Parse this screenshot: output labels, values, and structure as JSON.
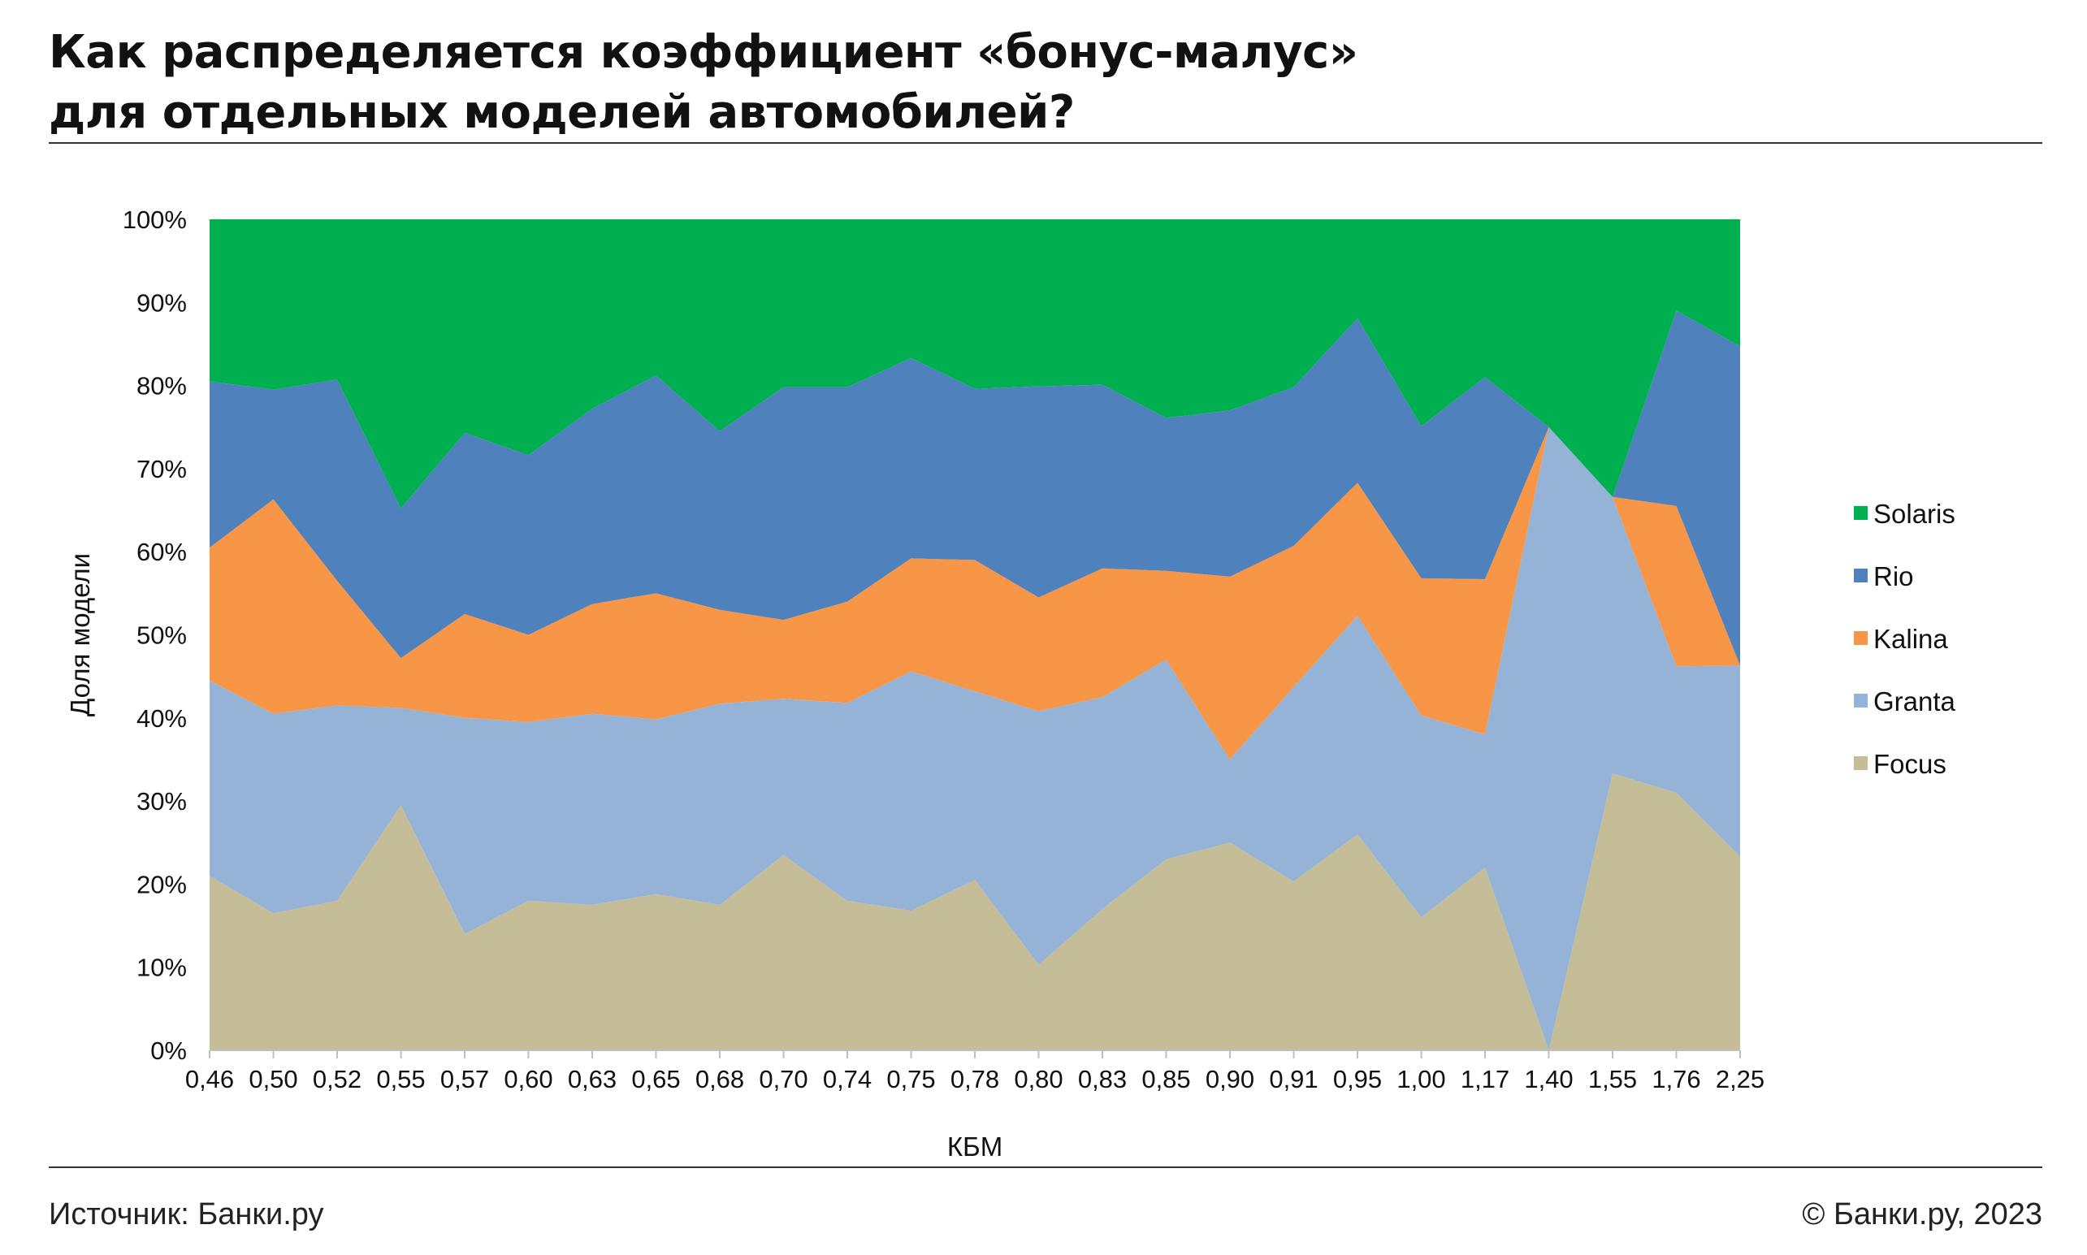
{
  "header": {
    "title_line1": "Как распределяется коэффициент «бонус-малус»",
    "title_line2": "для отдельных моделей автомобилей?"
  },
  "footer": {
    "source": "Источник: Банки.ру",
    "copyright": "© Банки.ру, 2023"
  },
  "colors": {
    "Solaris": "#00B050",
    "Rio": "#4F81BD",
    "Kalina": "#F79646",
    "Granta": "#95B3D7",
    "Focus": "#C4BD97"
  },
  "chart_data": {
    "type": "area",
    "stacked": true,
    "percent": true,
    "title": "",
    "xlabel": "КБМ",
    "ylabel": "Доля модели",
    "ylim": [
      0,
      100
    ],
    "y_ticks": [
      "0%",
      "10%",
      "20%",
      "30%",
      "40%",
      "50%",
      "60%",
      "70%",
      "80%",
      "90%",
      "100%"
    ],
    "legend_position": "right",
    "categories": [
      "0,46",
      "0,50",
      "0,52",
      "0,55",
      "0,57",
      "0,60",
      "0,63",
      "0,65",
      "0,68",
      "0,70",
      "0,74",
      "0,75",
      "0,78",
      "0,80",
      "0,83",
      "0,85",
      "0,90",
      "0,91",
      "0,95",
      "1,00",
      "1,17",
      "1,40",
      "1,55",
      "1,76",
      "2,25"
    ],
    "series": [
      {
        "name": "Focus",
        "values": [
          21,
          16.5,
          18,
          29.5,
          14,
          18,
          17.5,
          18.8,
          17.5,
          23.5,
          18,
          16.8,
          20.5,
          10.3,
          17,
          23,
          25,
          20.3,
          26,
          16,
          22,
          0,
          33.3,
          31,
          23.3
        ]
      },
      {
        "name": "Granta",
        "values": [
          23.5,
          24,
          23.5,
          11.7,
          26,
          21.5,
          23,
          21,
          24.2,
          18.8,
          23.8,
          28.8,
          22.7,
          30.5,
          25.5,
          24,
          10,
          23.4,
          26.3,
          24.3,
          16,
          75,
          33.3,
          15.2,
          23
        ]
      },
      {
        "name": "Kalina",
        "values": [
          16,
          25.8,
          15,
          6,
          12.5,
          10.5,
          13.2,
          15.2,
          11.3,
          9.5,
          12.2,
          13.6,
          15.8,
          13.7,
          15.5,
          10.7,
          22,
          17,
          16,
          16.5,
          18.7,
          0,
          0,
          19.3,
          0
        ]
      },
      {
        "name": "Rio",
        "values": [
          20,
          13.2,
          24.2,
          18,
          21.8,
          21.6,
          23.5,
          26.2,
          21.5,
          28,
          25.8,
          24.1,
          20.6,
          25.4,
          22.1,
          18.4,
          20,
          19.1,
          19.8,
          18.3,
          24.3,
          0,
          0,
          23.5,
          38.4
        ]
      },
      {
        "name": "Solaris",
        "values": [
          19.5,
          20.5,
          19.3,
          34.8,
          25.7,
          28.4,
          22.8,
          18.8,
          25.5,
          20.2,
          20.2,
          16.7,
          20.4,
          20.1,
          19.9,
          23.9,
          23,
          20.2,
          11.9,
          24.9,
          19,
          25,
          33.4,
          11,
          15.3
        ]
      }
    ]
  }
}
